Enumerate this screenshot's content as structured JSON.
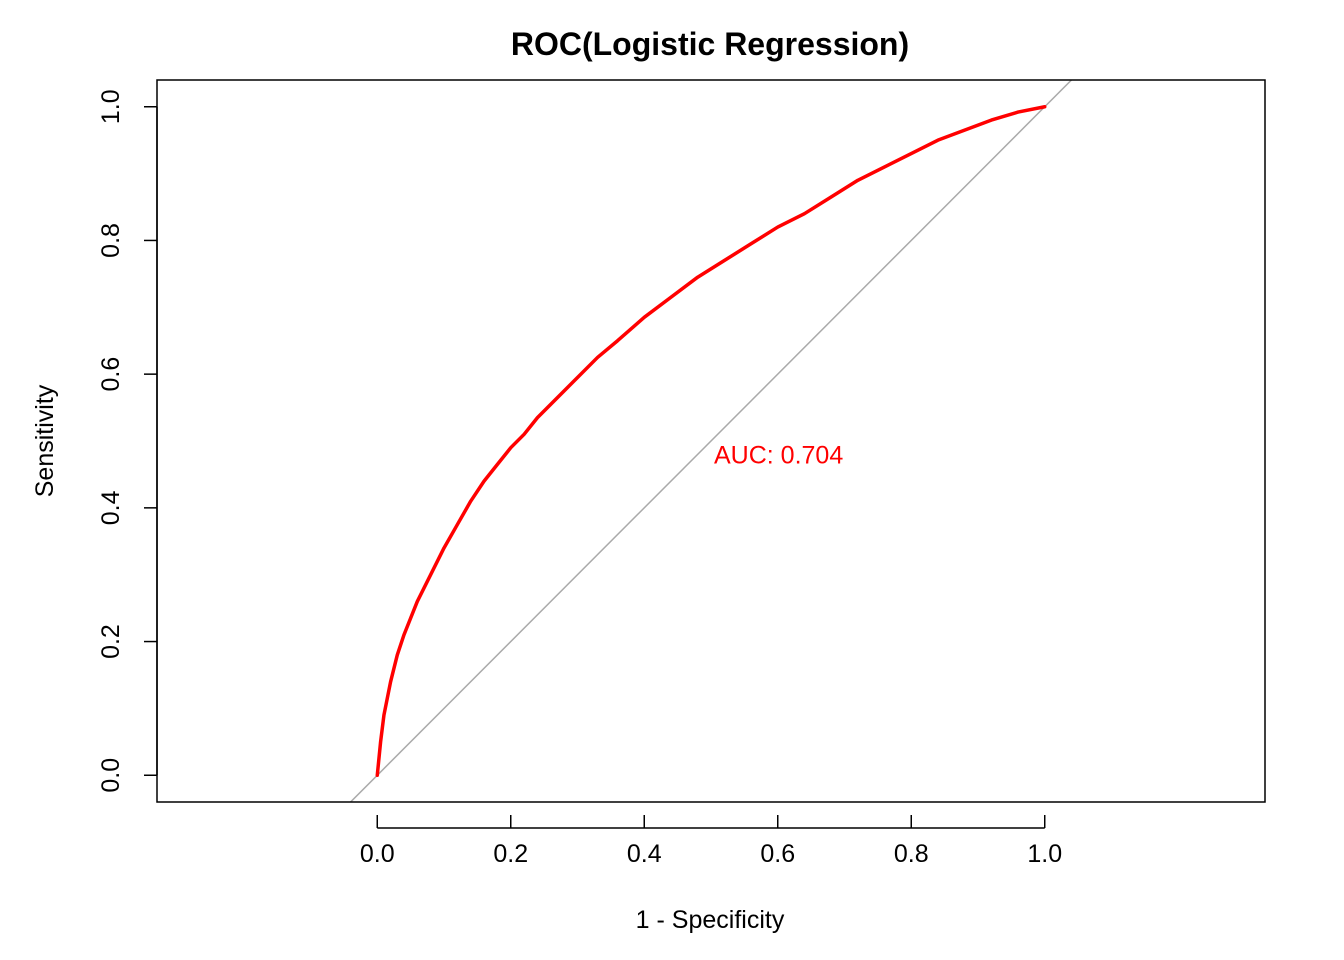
{
  "chart_data": {
    "type": "line",
    "title": "ROC(Logistic Regression)",
    "xlabel": "1 - Specificity",
    "ylabel": "Sensitivity",
    "xlim": [
      -0.33,
      1.33
    ],
    "ylim": [
      -0.04,
      1.04
    ],
    "x_ticks": [
      {
        "value": 0.0,
        "label": "0.0"
      },
      {
        "value": 0.2,
        "label": "0.2"
      },
      {
        "value": 0.4,
        "label": "0.4"
      },
      {
        "value": 0.6,
        "label": "0.6"
      },
      {
        "value": 0.8,
        "label": "0.8"
      },
      {
        "value": 1.0,
        "label": "1.0"
      }
    ],
    "y_ticks": [
      {
        "value": 0.0,
        "label": "0.0"
      },
      {
        "value": 0.2,
        "label": "0.2"
      },
      {
        "value": 0.4,
        "label": "0.4"
      },
      {
        "value": 0.6,
        "label": "0.6"
      },
      {
        "value": 0.8,
        "label": "0.8"
      },
      {
        "value": 1.0,
        "label": "1.0"
      }
    ],
    "grid": false,
    "series": [
      {
        "color": "#ff0000",
        "x": [
          0.0,
          0.005,
          0.01,
          0.02,
          0.03,
          0.04,
          0.05,
          0.06,
          0.07,
          0.08,
          0.1,
          0.12,
          0.14,
          0.16,
          0.18,
          0.2,
          0.22,
          0.24,
          0.26,
          0.28,
          0.3,
          0.33,
          0.36,
          0.4,
          0.44,
          0.48,
          0.52,
          0.56,
          0.6,
          0.64,
          0.68,
          0.72,
          0.76,
          0.8,
          0.84,
          0.88,
          0.92,
          0.96,
          1.0
        ],
        "y": [
          0.0,
          0.05,
          0.09,
          0.14,
          0.18,
          0.21,
          0.235,
          0.26,
          0.28,
          0.3,
          0.34,
          0.375,
          0.41,
          0.44,
          0.465,
          0.49,
          0.51,
          0.535,
          0.555,
          0.575,
          0.595,
          0.625,
          0.65,
          0.685,
          0.715,
          0.745,
          0.77,
          0.795,
          0.82,
          0.84,
          0.865,
          0.89,
          0.91,
          0.93,
          0.95,
          0.965,
          0.98,
          0.992,
          1.0
        ]
      }
    ],
    "reference_line": {
      "color": "#aaaaaa",
      "x": [
        -0.33,
        1.33
      ],
      "y": [
        -0.33,
        1.33
      ]
    },
    "annotations": [
      {
        "text": "AUC: 0.704",
        "x": 0.5,
        "y": 0.48,
        "color": "#ff0000"
      }
    ]
  }
}
